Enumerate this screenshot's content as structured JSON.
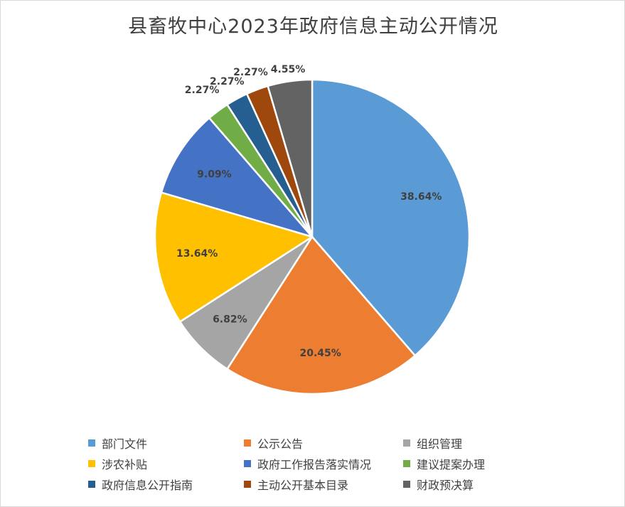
{
  "chart_data": {
    "type": "pie",
    "title": "县畜牧中心2023年政府信息主动公开情况",
    "legend_position": "bottom",
    "categories": [
      "部门文件",
      "公示公告",
      "组织管理",
      "涉农补贴",
      "政府工作报告落实情况",
      "建议提案办理",
      "政府信息公开指南",
      "主动公开基本目录",
      "财政预决算"
    ],
    "values": [
      38.64,
      20.45,
      6.82,
      13.64,
      9.09,
      2.27,
      2.27,
      2.27,
      4.55
    ],
    "labels": [
      "38.64%",
      "20.45%",
      "6.82%",
      "13.64%",
      "9.09%",
      "2.27%",
      "2.27%",
      "2.27%",
      "4.55%"
    ],
    "colors": [
      "#5B9BD5",
      "#ED7D31",
      "#A5A5A5",
      "#FFC000",
      "#4472C4",
      "#70AD47",
      "#255E91",
      "#9E480E",
      "#636363"
    ]
  }
}
